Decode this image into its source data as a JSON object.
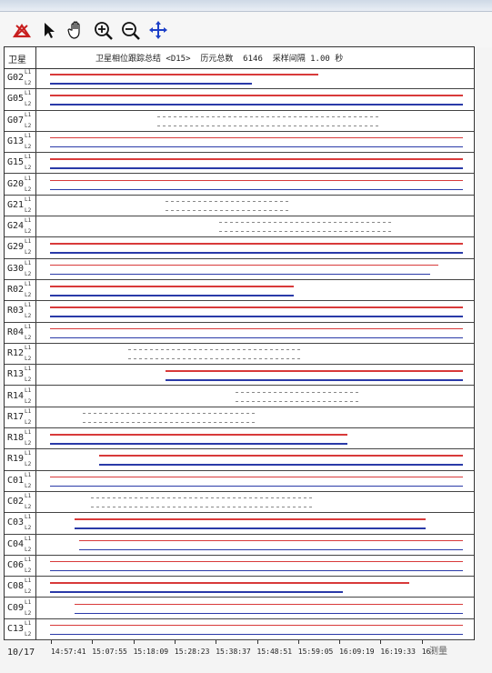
{
  "toolbar": {
    "tools": [
      {
        "name": "satellite-tool-icon"
      },
      {
        "name": "pointer-icon"
      },
      {
        "name": "pan-hand-icon"
      },
      {
        "name": "zoom-in-icon"
      },
      {
        "name": "zoom-out-icon"
      },
      {
        "name": "move-arrows-icon"
      }
    ]
  },
  "chart": {
    "header_label": "卫星",
    "title": "卫星相位跟踪总结 <D15>  历元总数  6146  采样间隔 1.00 秒",
    "freq_labels": [
      "L1",
      "L2"
    ],
    "satellites": [
      "G02",
      "G05",
      "G07",
      "G13",
      "G15",
      "G20",
      "G21",
      "G24",
      "G29",
      "G30",
      "R02",
      "R03",
      "R04",
      "R12",
      "R13",
      "R14",
      "R17",
      "R18",
      "R19",
      "C01",
      "C02",
      "C03",
      "C04",
      "C06",
      "C08",
      "C09",
      "C13"
    ]
  },
  "chart_data": {
    "type": "timeline",
    "title": "卫星相位跟踪总结 <D15>  历元总数  6146  采样间隔 1.00 秒",
    "date": "10/17",
    "x_ticks": [
      "14:57:41",
      "15:07:55",
      "15:18:09",
      "15:28:23",
      "15:38:37",
      "15:48:51",
      "15:59:05",
      "16:09:19",
      "16:19:33",
      "16:"
    ],
    "colors": {
      "L1": "#d83a3a",
      "L2": "#2a3aa8",
      "sparse": "#888888"
    },
    "series": [
      {
        "sat": "G02",
        "L1": [
          [
            0,
            0.65
          ]
        ],
        "L2": [
          [
            0,
            0.49
          ]
        ]
      },
      {
        "sat": "G05",
        "L1": [
          [
            0,
            1
          ]
        ],
        "L2": [
          [
            0,
            1
          ]
        ]
      },
      {
        "sat": "G07",
        "L1": [],
        "L2": [],
        "sparse": true
      },
      {
        "sat": "G13",
        "L1": [
          [
            0,
            1
          ]
        ],
        "L2": [
          [
            0,
            1
          ]
        ]
      },
      {
        "sat": "G15",
        "L1": [
          [
            0,
            1
          ]
        ],
        "L2": [
          [
            0,
            1
          ]
        ]
      },
      {
        "sat": "G20",
        "L1": [
          [
            0,
            1
          ]
        ],
        "L2": [
          [
            0,
            1
          ]
        ]
      },
      {
        "sat": "G21",
        "L1": [],
        "L2": [],
        "sparse": true
      },
      {
        "sat": "G24",
        "L1": [],
        "L2": [],
        "sparse": true
      },
      {
        "sat": "G29",
        "L1": [
          [
            0,
            1
          ]
        ],
        "L2": [
          [
            0,
            1
          ]
        ]
      },
      {
        "sat": "G30",
        "L1": [
          [
            0,
            0.94
          ]
        ],
        "L2": [
          [
            0,
            0.92
          ]
        ]
      },
      {
        "sat": "R02",
        "L1": [
          [
            0,
            0.59
          ]
        ],
        "L2": [
          [
            0,
            0.59
          ]
        ]
      },
      {
        "sat": "R03",
        "L1": [
          [
            0,
            1
          ]
        ],
        "L2": [
          [
            0,
            1
          ]
        ]
      },
      {
        "sat": "R04",
        "L1": [
          [
            0,
            1
          ]
        ],
        "L2": [
          [
            0,
            1
          ]
        ]
      },
      {
        "sat": "R12",
        "L1": [],
        "L2": [],
        "sparse": true
      },
      {
        "sat": "R13",
        "L1": [
          [
            0.28,
            1
          ]
        ],
        "L2": [
          [
            0.28,
            1
          ]
        ]
      },
      {
        "sat": "R14",
        "L1": [],
        "L2": [],
        "sparse": true
      },
      {
        "sat": "R17",
        "L1": [],
        "L2": [],
        "sparse": true
      },
      {
        "sat": "R18",
        "L1": [
          [
            0,
            0.72
          ]
        ],
        "L2": [
          [
            0,
            0.72
          ]
        ]
      },
      {
        "sat": "R19",
        "L1": [
          [
            0.12,
            1
          ]
        ],
        "L2": [
          [
            0.12,
            1
          ]
        ]
      },
      {
        "sat": "C01",
        "L1": [
          [
            0,
            1
          ]
        ],
        "L2": [
          [
            0,
            1
          ]
        ]
      },
      {
        "sat": "C02",
        "L1": [],
        "L2": [],
        "sparse": true
      },
      {
        "sat": "C03",
        "L1": [
          [
            0.06,
            0.91
          ]
        ],
        "L2": [
          [
            0.06,
            0.91
          ]
        ]
      },
      {
        "sat": "C04",
        "L1": [
          [
            0.07,
            1
          ]
        ],
        "L2": [
          [
            0.07,
            1
          ]
        ]
      },
      {
        "sat": "C06",
        "L1": [
          [
            0,
            1
          ]
        ],
        "L2": [
          [
            0,
            1
          ]
        ]
      },
      {
        "sat": "C08",
        "L1": [
          [
            0,
            0.87
          ]
        ],
        "L2": [
          [
            0,
            0.71
          ]
        ]
      },
      {
        "sat": "C09",
        "L1": [
          [
            0.06,
            1
          ]
        ],
        "L2": [
          [
            0.06,
            1
          ]
        ]
      },
      {
        "sat": "C13",
        "L1": [
          [
            0,
            1
          ]
        ],
        "L2": [
          [
            0,
            1
          ]
        ]
      }
    ]
  },
  "watermark": "测量"
}
